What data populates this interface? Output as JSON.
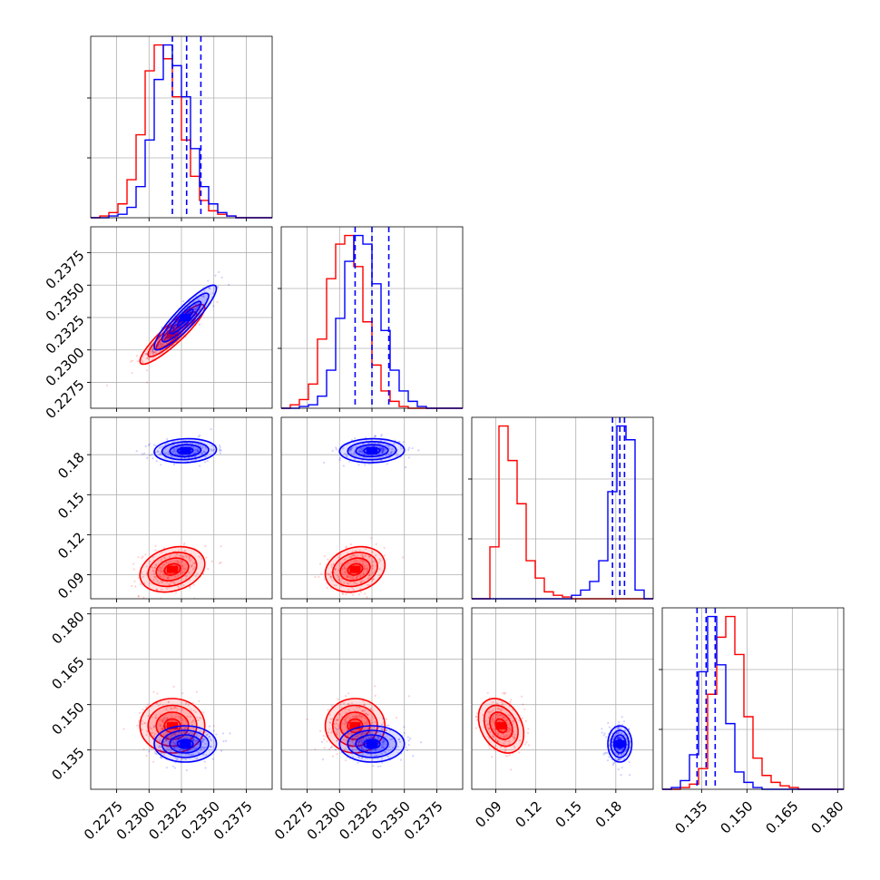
{
  "chart_data": {
    "type": "corner",
    "grid": true,
    "colors": {
      "red": "#ff0000",
      "blue": "#0000ff"
    },
    "params": [
      {
        "range": [
          0.2255,
          0.2395
        ],
        "ticks": [
          0.2275,
          0.23,
          0.2325,
          0.235,
          0.2375
        ],
        "tick_labels": [
          "0.2275",
          "0.2300",
          "0.2325",
          "0.2350",
          "0.2375"
        ]
      },
      {
        "range": [
          0.2255,
          0.2395
        ],
        "ticks": [
          0.2275,
          0.23,
          0.2325,
          0.235,
          0.2375
        ],
        "tick_labels": [
          "0.2275",
          "0.2300",
          "0.2325",
          "0.2350",
          "0.2375"
        ]
      },
      {
        "range": [
          0.072,
          0.208
        ],
        "ticks": [
          0.09,
          0.12,
          0.15,
          0.18
        ],
        "tick_labels": [
          "0.09",
          "0.12",
          "0.15",
          "0.18"
        ]
      },
      {
        "range": [
          0.122,
          0.182
        ],
        "ticks": [
          0.135,
          0.15,
          0.165,
          0.18
        ],
        "tick_labels": [
          "0.135",
          "0.150",
          "0.165",
          "0.180"
        ]
      }
    ],
    "series": [
      {
        "color": "red",
        "means": [
          0.2318,
          0.2312,
          0.094,
          0.143
        ],
        "stds": [
          0.00125,
          0.00115,
          0.0085,
          0.0045
        ],
        "correlations": [
          [
            0,
            1,
            0.9
          ],
          [
            0,
            2,
            0.25
          ],
          [
            0,
            3,
            0.0
          ],
          [
            1,
            2,
            0.2
          ],
          [
            1,
            3,
            0.0
          ],
          [
            2,
            3,
            -0.3
          ]
        ]
      },
      {
        "color": "blue",
        "means": [
          0.2328,
          0.2325,
          0.183,
          0.137
        ],
        "stds": [
          0.0012,
          0.00125,
          0.0045,
          0.003
        ],
        "correlations": [
          [
            0,
            1,
            0.9
          ],
          [
            0,
            2,
            0.1
          ],
          [
            0,
            3,
            0.0
          ],
          [
            1,
            2,
            0.05
          ],
          [
            1,
            3,
            0.0
          ],
          [
            2,
            3,
            0.0
          ]
        ]
      }
    ],
    "quantile_lines": {
      "color": "blue",
      "values": [
        [
          0.2318,
          0.2329,
          0.234
        ],
        [
          0.2312,
          0.2325,
          0.2338
        ],
        [
          0.1775,
          0.183,
          0.1865
        ],
        [
          0.1335,
          0.1365,
          0.1395
        ]
      ]
    },
    "histograms": [
      {
        "bins": [
          0.2255,
          0.2395,
          20
        ],
        "red": [
          0,
          1,
          3,
          8,
          22,
          48,
          85,
          100,
          92,
          70,
          45,
          24,
          10,
          4,
          2,
          1,
          0,
          0,
          0,
          0
        ],
        "blue": [
          0,
          0,
          1,
          2,
          6,
          18,
          45,
          80,
          100,
          88,
          70,
          40,
          18,
          8,
          3,
          1,
          0,
          0,
          0,
          0
        ]
      },
      {
        "bins": [
          0.2255,
          0.2395,
          20
        ],
        "red": [
          0,
          2,
          5,
          14,
          40,
          75,
          95,
          100,
          82,
          50,
          25,
          10,
          4,
          1,
          0,
          0,
          0,
          0,
          0,
          0
        ],
        "blue": [
          0,
          0,
          1,
          2,
          7,
          22,
          52,
          85,
          100,
          95,
          72,
          45,
          22,
          10,
          4,
          1,
          0,
          0,
          0,
          0
        ]
      },
      {
        "bins": [
          0.072,
          0.208,
          20
        ],
        "red": [
          0,
          0,
          30,
          100,
          80,
          55,
          22,
          12,
          4,
          2,
          1,
          0,
          0,
          0,
          0,
          0,
          0,
          0,
          0,
          0
        ],
        "blue": [
          0,
          0,
          0,
          0,
          0,
          0,
          0,
          0,
          0,
          0,
          0,
          2,
          5,
          10,
          22,
          62,
          100,
          92,
          5,
          0
        ]
      },
      {
        "bins": [
          0.122,
          0.182,
          20
        ],
        "red": [
          0,
          0,
          1,
          3,
          12,
          55,
          88,
          100,
          78,
          42,
          18,
          8,
          4,
          2,
          1,
          0,
          0,
          0,
          0,
          0
        ],
        "blue": [
          0,
          1,
          5,
          20,
          68,
          100,
          72,
          38,
          10,
          4,
          1,
          0,
          0,
          0,
          0,
          0,
          0,
          0,
          0,
          0
        ]
      }
    ]
  }
}
